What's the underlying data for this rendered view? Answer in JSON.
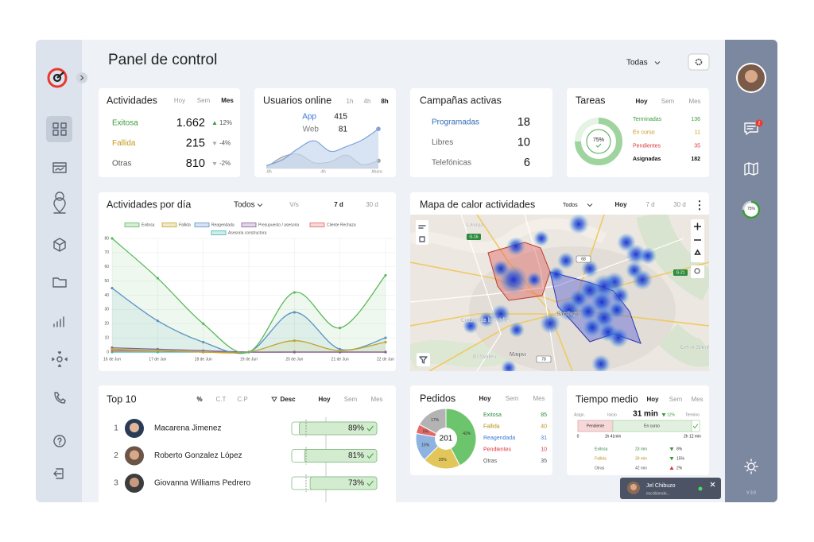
{
  "header": {
    "title": "Panel de control",
    "filter": "Todas"
  },
  "activities": {
    "title": "Actividades",
    "tabs": [
      "Hoy",
      "Sem",
      "Mes"
    ],
    "rows": [
      {
        "label": "Exitosa",
        "value": "1.662",
        "change": "12%"
      },
      {
        "label": "Fallida",
        "value": "215",
        "change": "-4%"
      },
      {
        "label": "Otras",
        "value": "810",
        "change": "-2%"
      }
    ]
  },
  "online": {
    "title": "Usuarios online",
    "tabs": [
      "1h",
      "4h",
      "8h"
    ],
    "rows": [
      {
        "label": "App",
        "value": "415"
      },
      {
        "label": "Web",
        "value": "81"
      }
    ],
    "xticks": [
      "-8h",
      "-4h",
      "Ahora"
    ],
    "ylim": [
      0,
      450
    ],
    "app": [
      30,
      90,
      210,
      290,
      180,
      230,
      300,
      415
    ],
    "web": [
      10,
      120,
      150,
      60,
      70,
      140,
      40,
      81
    ]
  },
  "campaigns": {
    "title": "Campañas activas",
    "rows": [
      {
        "label": "Programadas",
        "value": "18"
      },
      {
        "label": "Libres",
        "value": "10"
      },
      {
        "label": "Telefónicas",
        "value": "6"
      }
    ]
  },
  "tasks": {
    "title": "Tareas",
    "tabs": [
      "Hoy",
      "Sem",
      "Mes"
    ],
    "rows": [
      {
        "label": "Terminadas",
        "value": "136"
      },
      {
        "label": "En curso",
        "value": "11"
      },
      {
        "label": "Pendientes",
        "value": "35"
      },
      {
        "label": "Asignadas",
        "value": "182"
      }
    ],
    "donut": {
      "value": 75,
      "label": "75%"
    }
  },
  "daily": {
    "title": "Actividades por día",
    "filter": "Todos",
    "tabs": [
      "V/s",
      "7 d",
      "30 d"
    ],
    "chart": {
      "type": "line",
      "categories": [
        "16 de Jun",
        "17 de Jun",
        "18 de Jun",
        "19 de Jun",
        "20 de Jun",
        "21 de Jun",
        "22 de Jun"
      ],
      "series": [
        {
          "name": "Exitosa",
          "color": "#5cb85c",
          "values": [
            80,
            52,
            20,
            0,
            42,
            17,
            54
          ]
        },
        {
          "name": "Fallida",
          "color": "#c9a227",
          "values": [
            2,
            1,
            0,
            0,
            8,
            1,
            7
          ]
        },
        {
          "name": "Reagendada",
          "color": "#5b8fd0",
          "values": [
            45,
            22,
            7,
            0,
            28,
            2,
            10
          ]
        },
        {
          "name": "Presupuesto / asesoria",
          "color": "#8a5a9e",
          "values": [
            3,
            2,
            1,
            0,
            0,
            0,
            0
          ]
        },
        {
          "name": "Cliente Rechaza",
          "color": "#e06666",
          "values": [
            1,
            1,
            0,
            0,
            0,
            0,
            0
          ]
        },
        {
          "name": "Asesoria constructora",
          "color": "#3fb6b0",
          "values": [
            0,
            0,
            0,
            0,
            0,
            0,
            0
          ]
        }
      ],
      "ylim": [
        0,
        80
      ],
      "yticks": [
        0,
        10,
        20,
        30,
        40,
        50,
        60,
        70,
        80
      ],
      "grid": true
    }
  },
  "map": {
    "title": "Mapa de calor actividades",
    "filter": "Todos",
    "tabs": [
      "Hoy",
      "7 d",
      "30 d"
    ],
    "places": [
      "Lampa",
      "Santiago",
      "Ciudad de los Valles",
      "El Maitén",
      "Maipú",
      "Cerro San Ramón"
    ],
    "roads": [
      "G-16",
      "68",
      "G-21",
      "78"
    ]
  },
  "top10": {
    "title": "Top 10",
    "tabs": [
      "%",
      "C.T",
      "C.P",
      "Desc",
      "Hoy",
      "Sem",
      "Mes"
    ],
    "rows": [
      {
        "rank": "1",
        "name": "Macarena Jimenez",
        "pct": {
          "value": 89,
          "label": "89%"
        }
      },
      {
        "rank": "2",
        "name": "Roberto Gonzalez López",
        "pct": {
          "value": 81,
          "label": "81%"
        }
      },
      {
        "rank": "3",
        "name": "Giovanna Williams Pedrero",
        "pct": {
          "value": 73,
          "label": "73%"
        }
      }
    ]
  },
  "orders": {
    "title": "Pedidos",
    "tabs": [
      "Hoy",
      "Sem",
      "Mes"
    ],
    "total": "201",
    "rows": [
      {
        "label": "Exitosa",
        "value": "85",
        "color": "#6cc46c"
      },
      {
        "label": "Fallida",
        "value": "40",
        "color": "#e3c65a"
      },
      {
        "label": "Reagendada",
        "value": "31",
        "color": "#8fb3e0"
      },
      {
        "label": "Pendientes",
        "value": "10",
        "color": "#e46a6a"
      },
      {
        "label": "Otras",
        "value": "35",
        "color": "#b3b3b3"
      }
    ],
    "pie": [
      {
        "value": 42,
        "label": "42%"
      },
      {
        "value": 20,
        "label": "20%"
      },
      {
        "value": 15,
        "label": "15%"
      },
      {
        "value": 5,
        "label": "5%"
      },
      {
        "value": 17,
        "label": "17%"
      }
    ]
  },
  "avg_time": {
    "title": "Tiempo medio",
    "tabs": [
      "Hoy",
      "Sem",
      "Mes"
    ],
    "labels": [
      "Asign.",
      "Inicio",
      "Termino"
    ],
    "value": "31 min",
    "change": "12%",
    "bar": [
      "Pendiente",
      "En curso"
    ],
    "scale": [
      "0",
      "1h 41min",
      "2h 12 min"
    ],
    "rows": [
      {
        "label": "Exitosa",
        "value": "23 min",
        "change": "8%"
      },
      {
        "label": "Fallida",
        "value": "39 min",
        "change": "15%"
      },
      {
        "label": "Otras",
        "value": "42 min",
        "change": "2%"
      }
    ]
  },
  "sidebar": {
    "badge": "2",
    "progress": {
      "value": 75,
      "label": "75%"
    },
    "version": "V 3.0"
  },
  "chat": {
    "name": "Jel Chibuzo",
    "status": "escribiendo..."
  }
}
